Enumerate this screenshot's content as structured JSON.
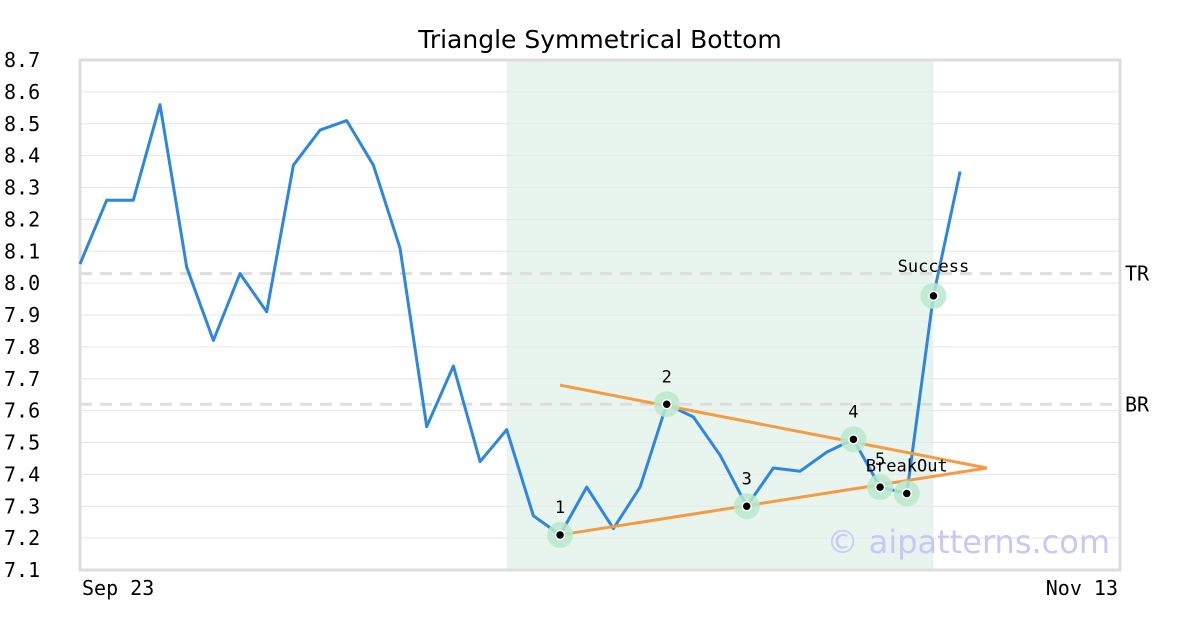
{
  "chart_data": {
    "type": "line",
    "title": "Triangle Symmetrical Bottom",
    "x_start_label": "Sep 23",
    "x_end_label": "Nov 13",
    "ylim": [
      7.1,
      8.7
    ],
    "yticks": [
      "7.1",
      "7.2",
      "7.3",
      "7.4",
      "7.5",
      "7.6",
      "7.7",
      "7.8",
      "7.9",
      "8.0",
      "8.1",
      "8.2",
      "8.3",
      "8.4",
      "8.5",
      "8.6",
      "8.7"
    ],
    "grid": true,
    "series": [
      {
        "values": [
          8.06,
          8.26,
          8.26,
          8.56,
          8.05,
          7.82,
          8.03,
          7.91,
          8.37,
          8.48,
          8.51,
          8.37,
          8.11,
          7.55,
          7.74,
          7.44,
          7.54,
          7.27,
          7.21,
          7.36,
          7.23,
          7.36,
          7.62,
          7.58,
          7.46,
          7.3,
          7.42,
          7.41,
          7.47,
          7.51,
          7.36,
          7.34,
          7.96,
          8.35
        ],
        "color": "#2e86de"
      }
    ],
    "pattern_region": {
      "start_index": 16,
      "end_index": 32,
      "color": "#e8f5ee"
    },
    "reference_lines": [
      {
        "label": "TR",
        "value": 8.03
      },
      {
        "label": "BR",
        "value": 7.62
      }
    ],
    "trendlines": [
      {
        "from": [
          18,
          7.68
        ],
        "to": [
          34,
          7.42
        ],
        "color": "#f59b42"
      },
      {
        "from": [
          18,
          7.21
        ],
        "to": [
          34,
          7.42
        ],
        "color": "#f59b42"
      }
    ],
    "points": [
      {
        "label": "1",
        "index": 18,
        "value": 7.21
      },
      {
        "label": "2",
        "index": 22,
        "value": 7.62
      },
      {
        "label": "3",
        "index": 25,
        "value": 7.3
      },
      {
        "label": "4",
        "index": 29,
        "value": 7.51
      },
      {
        "label": "5",
        "index": 30,
        "value": 7.36
      },
      {
        "label": "BreakOut",
        "index": 31,
        "value": 7.34
      },
      {
        "label": "Success",
        "index": 32,
        "value": 7.96
      }
    ],
    "watermark": "© aipatterns.com"
  }
}
